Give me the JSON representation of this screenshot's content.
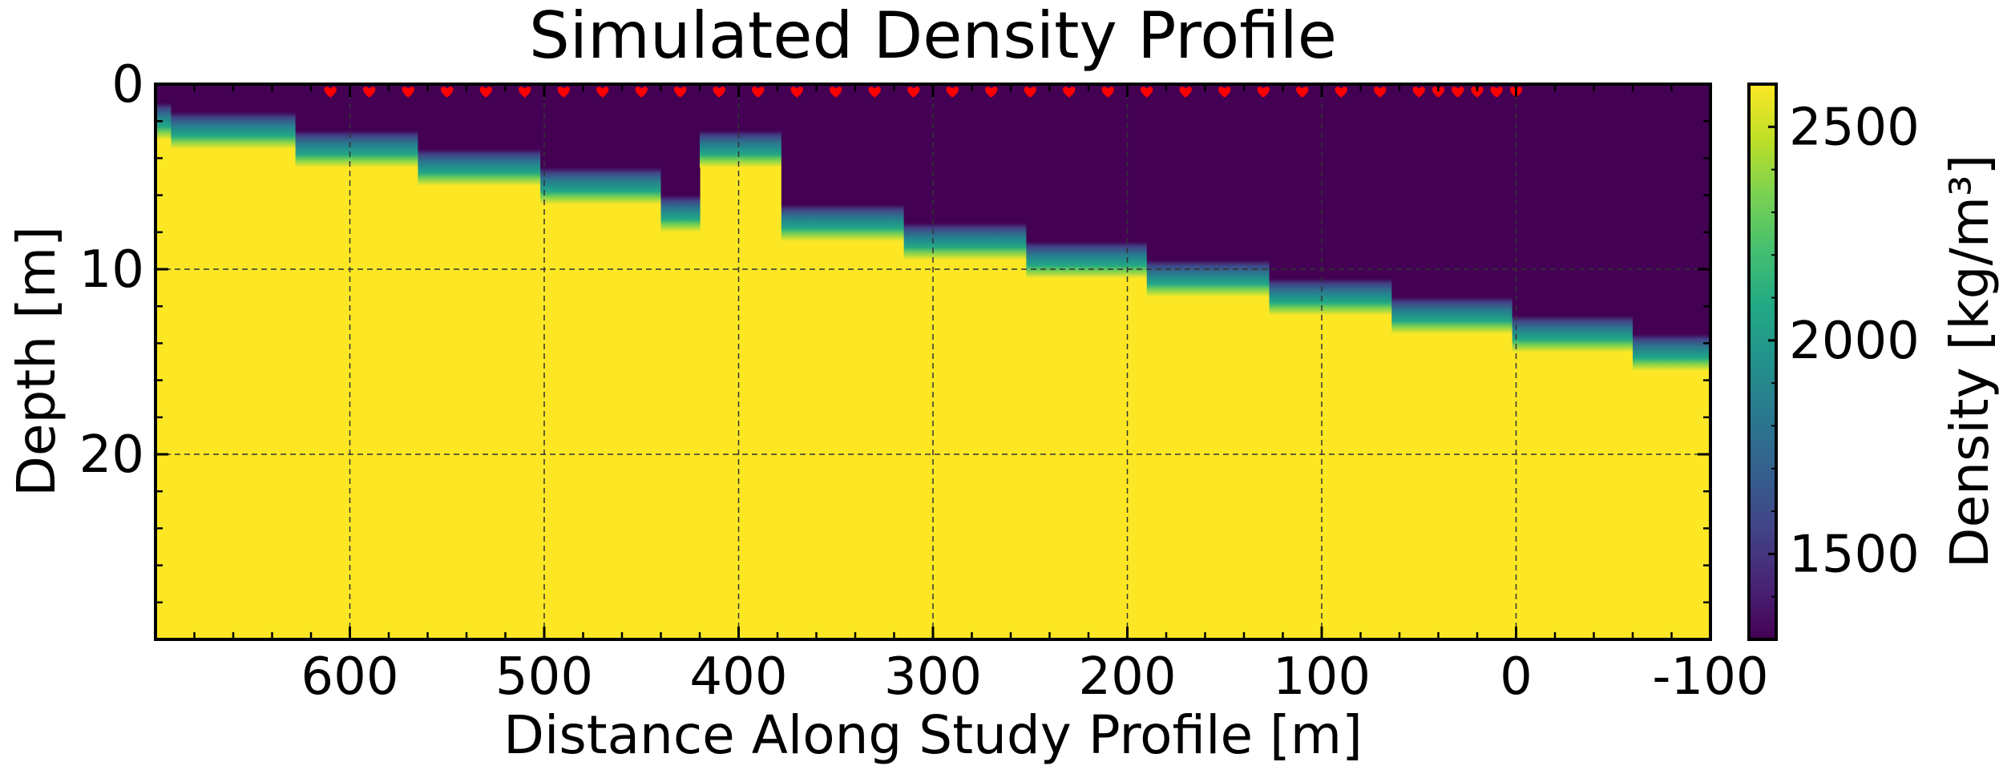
{
  "chart_data": {
    "type": "heatmap",
    "title": "Simulated Density Profile",
    "xlabel": "Distance Along Study Profile [m]",
    "ylabel": "Depth [m]",
    "colorbar_label": "Density [kg/m³]",
    "xlim": [
      700,
      -100
    ],
    "ylim": [
      30,
      0
    ],
    "x_ticks": [
      600,
      500,
      400,
      300,
      200,
      100,
      0,
      -100
    ],
    "x_tick_labels": [
      "600",
      "500",
      "400",
      "300",
      "200",
      "100",
      "0",
      "-100"
    ],
    "y_ticks": [
      0,
      10,
      20
    ],
    "y_tick_labels": [
      "0",
      "10",
      "20"
    ],
    "colorbar_range": [
      1300,
      2600
    ],
    "colorbar_ticks": [
      1500,
      2000,
      2500
    ],
    "colorbar_tick_labels": [
      "1500",
      "2000",
      "2500"
    ],
    "colormap": "viridis",
    "grid": true,
    "low_density": 1300,
    "high_density": 2600,
    "interface_profile": [
      {
        "x_from": 700,
        "x_to": 692,
        "top_depth": 1.0
      },
      {
        "x_from": 692,
        "x_to": 628,
        "top_depth": 1.5
      },
      {
        "x_from": 628,
        "x_to": 565,
        "top_depth": 2.5
      },
      {
        "x_from": 565,
        "x_to": 502,
        "top_depth": 3.5
      },
      {
        "x_from": 502,
        "x_to": 440,
        "top_depth": 4.5
      },
      {
        "x_from": 440,
        "x_to": 420,
        "top_depth": 6.0
      },
      {
        "x_from": 420,
        "x_to": 378,
        "top_depth": 2.5
      },
      {
        "x_from": 378,
        "x_to": 315,
        "top_depth": 6.5
      },
      {
        "x_from": 315,
        "x_to": 252,
        "top_depth": 7.5
      },
      {
        "x_from": 252,
        "x_to": 190,
        "top_depth": 8.5
      },
      {
        "x_from": 190,
        "x_to": 127,
        "top_depth": 9.5
      },
      {
        "x_from": 127,
        "x_to": 64,
        "top_depth": 10.5
      },
      {
        "x_from": 64,
        "x_to": 2,
        "top_depth": 11.5
      },
      {
        "x_from": 2,
        "x_to": -60,
        "top_depth": 12.5
      },
      {
        "x_from": -60,
        "x_to": -100,
        "top_depth": 13.5
      }
    ],
    "transition_thickness": 2.0,
    "station_markers": {
      "symbol": "heart",
      "color": "#ff0000",
      "depth": 0.2,
      "x": [
        610,
        590,
        570,
        550,
        530,
        510,
        490,
        470,
        450,
        430,
        410,
        390,
        370,
        350,
        330,
        310,
        290,
        270,
        250,
        230,
        210,
        190,
        170,
        150,
        130,
        110,
        90,
        70,
        50,
        40,
        30,
        20,
        10,
        0
      ]
    }
  }
}
